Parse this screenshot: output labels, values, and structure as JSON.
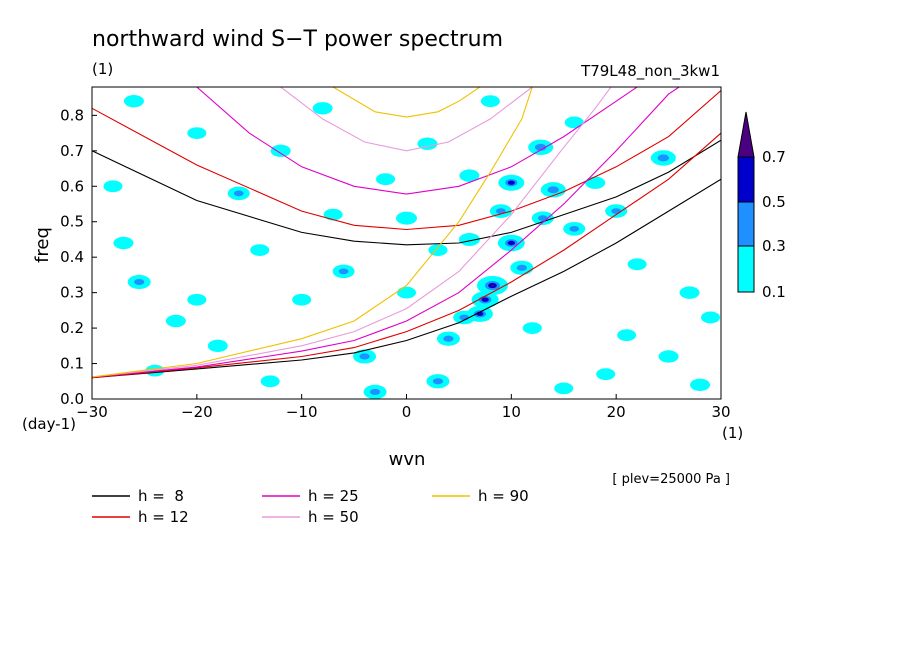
{
  "chart_data": {
    "type": "heatmap",
    "title": "northward wind S−T power spectrum",
    "title_unit": "(1)",
    "run_label": "T79L48_non_3kw1",
    "xlabel": "wvn",
    "ylabel": "freq",
    "x_unit": "(1)",
    "y_unit": "(day-1)",
    "level_note": "[ plev=25000 Pa ]",
    "xlim": [
      -30,
      30
    ],
    "ylim": [
      0,
      0.88
    ],
    "x_ticks": [
      "−30",
      "−20",
      "−10",
      "0",
      "10",
      "20",
      "30"
    ],
    "x_tick_values": [
      -30,
      -20,
      -10,
      0,
      10,
      20,
      30
    ],
    "y_ticks": [
      "0.0",
      "0.1",
      "0.2",
      "0.3",
      "0.4",
      "0.5",
      "0.6",
      "0.7",
      "0.8"
    ],
    "y_tick_values": [
      0,
      0.1,
      0.2,
      0.3,
      0.4,
      0.5,
      0.6,
      0.7,
      0.8
    ],
    "colorbar": {
      "levels": [
        "0.1",
        "0.3",
        "0.5",
        "0.7"
      ],
      "colors": [
        "#00ffff",
        "#1e90ff",
        "#0000cd",
        "#4b0082"
      ]
    },
    "legend": [
      {
        "label": "h =  8",
        "h": 8,
        "color": "#000000"
      },
      {
        "label": "h = 12",
        "h": 12,
        "color": "#e00000"
      },
      {
        "label": "h = 25",
        "h": 25,
        "color": "#e000c8"
      },
      {
        "label": "h = 50",
        "h": 50,
        "color": "#e89cdc"
      },
      {
        "label": "h = 90",
        "h": 90,
        "color": "#f0c000"
      }
    ],
    "dispersion_curves": [
      {
        "name": "h=8 gravity",
        "color": "#000000",
        "points": [
          [
            -30,
            0.7
          ],
          [
            -20,
            0.56
          ],
          [
            -10,
            0.47
          ],
          [
            -5,
            0.445
          ],
          [
            0,
            0.435
          ],
          [
            5,
            0.44
          ],
          [
            10,
            0.47
          ],
          [
            15,
            0.52
          ],
          [
            20,
            0.57
          ],
          [
            25,
            0.64
          ],
          [
            30,
            0.73
          ]
        ]
      },
      {
        "name": "h=8 kelvin",
        "color": "#000000",
        "points": [
          [
            -30,
            0.06
          ],
          [
            -20,
            0.085
          ],
          [
            -10,
            0.11
          ],
          [
            -5,
            0.13
          ],
          [
            0,
            0.165
          ],
          [
            5,
            0.215
          ],
          [
            10,
            0.29
          ],
          [
            15,
            0.36
          ],
          [
            20,
            0.44
          ],
          [
            25,
            0.53
          ],
          [
            30,
            0.62
          ]
        ]
      },
      {
        "name": "h=12 gravity",
        "color": "#e00000",
        "points": [
          [
            -30,
            0.82
          ],
          [
            -20,
            0.66
          ],
          [
            -10,
            0.53
          ],
          [
            -5,
            0.49
          ],
          [
            0,
            0.478
          ],
          [
            5,
            0.49
          ],
          [
            10,
            0.53
          ],
          [
            15,
            0.585
          ],
          [
            20,
            0.655
          ],
          [
            25,
            0.74
          ],
          [
            30,
            0.87
          ]
        ]
      },
      {
        "name": "h=12 kelvin",
        "color": "#e00000",
        "points": [
          [
            -30,
            0.06
          ],
          [
            -20,
            0.088
          ],
          [
            -10,
            0.12
          ],
          [
            -5,
            0.145
          ],
          [
            0,
            0.19
          ],
          [
            5,
            0.25
          ],
          [
            10,
            0.33
          ],
          [
            15,
            0.42
          ],
          [
            20,
            0.52
          ],
          [
            25,
            0.62
          ],
          [
            30,
            0.75
          ]
        ]
      },
      {
        "name": "h=25 gravity",
        "color": "#e000c8",
        "points": [
          [
            -20,
            0.88
          ],
          [
            -15,
            0.75
          ],
          [
            -10,
            0.655
          ],
          [
            -5,
            0.6
          ],
          [
            0,
            0.578
          ],
          [
            5,
            0.6
          ],
          [
            10,
            0.655
          ],
          [
            15,
            0.74
          ],
          [
            20,
            0.84
          ],
          [
            22,
            0.88
          ]
        ]
      },
      {
        "name": "h=25 kelvin",
        "color": "#e000c8",
        "points": [
          [
            -30,
            0.062
          ],
          [
            -20,
            0.09
          ],
          [
            -10,
            0.135
          ],
          [
            -5,
            0.165
          ],
          [
            0,
            0.22
          ],
          [
            5,
            0.3
          ],
          [
            10,
            0.42
          ],
          [
            15,
            0.55
          ],
          [
            20,
            0.7
          ],
          [
            25,
            0.86
          ],
          [
            26,
            0.88
          ]
        ]
      },
      {
        "name": "h=50 gravity",
        "color": "#e89cdc",
        "points": [
          [
            -12,
            0.88
          ],
          [
            -8,
            0.79
          ],
          [
            -4,
            0.725
          ],
          [
            0,
            0.7
          ],
          [
            4,
            0.725
          ],
          [
            8,
            0.79
          ],
          [
            12,
            0.88
          ]
        ]
      },
      {
        "name": "h=50 kelvin",
        "color": "#e89cdc",
        "points": [
          [
            -30,
            0.062
          ],
          [
            -20,
            0.095
          ],
          [
            -10,
            0.15
          ],
          [
            -5,
            0.19
          ],
          [
            0,
            0.255
          ],
          [
            5,
            0.36
          ],
          [
            10,
            0.52
          ],
          [
            15,
            0.71
          ],
          [
            18,
            0.82
          ],
          [
            19.5,
            0.88
          ]
        ]
      },
      {
        "name": "h=90 gravity",
        "color": "#f0c000",
        "points": [
          [
            -7,
            0.88
          ],
          [
            -3,
            0.81
          ],
          [
            0,
            0.795
          ],
          [
            3,
            0.81
          ],
          [
            5,
            0.84
          ],
          [
            7,
            0.88
          ]
        ]
      },
      {
        "name": "h=90 kelvin",
        "color": "#f0c000",
        "points": [
          [
            -30,
            0.062
          ],
          [
            -20,
            0.1
          ],
          [
            -10,
            0.17
          ],
          [
            -5,
            0.22
          ],
          [
            0,
            0.32
          ],
          [
            5,
            0.5
          ],
          [
            8,
            0.64
          ],
          [
            11,
            0.79
          ],
          [
            12,
            0.88
          ]
        ]
      }
    ],
    "power_blobs": [
      {
        "x": 8.2,
        "y": 0.32,
        "v": 0.75
      },
      {
        "x": 7.5,
        "y": 0.28,
        "v": 0.55
      },
      {
        "x": 7,
        "y": 0.24,
        "v": 0.5
      },
      {
        "x": 10,
        "y": 0.44,
        "v": 0.55
      },
      {
        "x": 10,
        "y": 0.61,
        "v": 0.5
      },
      {
        "x": 12.8,
        "y": 0.71,
        "v": 0.45
      },
      {
        "x": 14,
        "y": 0.59,
        "v": 0.45
      },
      {
        "x": 24.5,
        "y": 0.68,
        "v": 0.45
      },
      {
        "x": -25.5,
        "y": 0.33,
        "v": 0.35
      },
      {
        "x": -4,
        "y": 0.12,
        "v": 0.35
      },
      {
        "x": -3,
        "y": 0.02,
        "v": 0.35
      },
      {
        "x": 3,
        "y": 0.05,
        "v": 0.35
      },
      {
        "x": 4,
        "y": 0.17,
        "v": 0.35
      },
      {
        "x": 5.5,
        "y": 0.23,
        "v": 0.3
      },
      {
        "x": -16,
        "y": 0.58,
        "v": 0.3
      },
      {
        "x": 16,
        "y": 0.48,
        "v": 0.3
      },
      {
        "x": 20,
        "y": 0.53,
        "v": 0.3
      },
      {
        "x": -6,
        "y": 0.36,
        "v": 0.3
      },
      {
        "x": 0,
        "y": 0.51,
        "v": 0.25
      },
      {
        "x": -12,
        "y": 0.7,
        "v": 0.2
      },
      {
        "x": -18,
        "y": 0.15,
        "v": 0.2
      },
      {
        "x": -22,
        "y": 0.22,
        "v": 0.2
      },
      {
        "x": -27,
        "y": 0.44,
        "v": 0.2
      },
      {
        "x": -26,
        "y": 0.84,
        "v": 0.2
      },
      {
        "x": -8,
        "y": 0.82,
        "v": 0.2
      },
      {
        "x": 2,
        "y": 0.72,
        "v": 0.2
      },
      {
        "x": 6,
        "y": 0.63,
        "v": 0.2
      },
      {
        "x": 18,
        "y": 0.61,
        "v": 0.2
      },
      {
        "x": 27,
        "y": 0.3,
        "v": 0.2
      },
      {
        "x": 29,
        "y": 0.23,
        "v": 0.15
      },
      {
        "x": 25,
        "y": 0.12,
        "v": 0.2
      },
      {
        "x": 28,
        "y": 0.04,
        "v": 0.2
      },
      {
        "x": 15,
        "y": 0.03,
        "v": 0.15
      },
      {
        "x": 19,
        "y": 0.07,
        "v": 0.15
      },
      {
        "x": -13,
        "y": 0.05,
        "v": 0.15
      },
      {
        "x": -20,
        "y": 0.28,
        "v": 0.15
      },
      {
        "x": -28,
        "y": 0.6,
        "v": 0.15
      },
      {
        "x": -10,
        "y": 0.28,
        "v": 0.15
      },
      {
        "x": 0,
        "y": 0.3,
        "v": 0.15
      },
      {
        "x": 12,
        "y": 0.2,
        "v": 0.15
      },
      {
        "x": 22,
        "y": 0.38,
        "v": 0.15
      },
      {
        "x": -2,
        "y": 0.62,
        "v": 0.15
      },
      {
        "x": 8,
        "y": 0.84,
        "v": 0.15
      },
      {
        "x": -20,
        "y": 0.75,
        "v": 0.15
      },
      {
        "x": 16,
        "y": 0.78,
        "v": 0.15
      },
      {
        "x": -14,
        "y": 0.42,
        "v": 0.15
      },
      {
        "x": 3,
        "y": 0.42,
        "v": 0.15
      },
      {
        "x": -24,
        "y": 0.08,
        "v": 0.15
      },
      {
        "x": 11,
        "y": 0.37,
        "v": 0.35
      },
      {
        "x": 9,
        "y": 0.53,
        "v": 0.3
      },
      {
        "x": 13,
        "y": 0.51,
        "v": 0.3
      },
      {
        "x": 6,
        "y": 0.45,
        "v": 0.25
      },
      {
        "x": -7,
        "y": 0.52,
        "v": 0.15
      },
      {
        "x": 21,
        "y": 0.18,
        "v": 0.15
      }
    ]
  }
}
